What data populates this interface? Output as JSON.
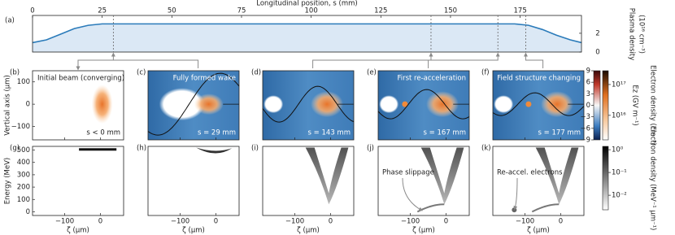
{
  "chart_data": [
    {
      "type": "line",
      "label": "(a)",
      "xlabel": "Longitudinal position, s (mm)",
      "ylabel": "Plasma density",
      "ylabel_unit": "(10¹⁶ cm⁻³)",
      "x": [
        0,
        5,
        10,
        15,
        20,
        25,
        28,
        173,
        178,
        183,
        188,
        193,
        197
      ],
      "values": [
        1.0,
        1.3,
        1.9,
        2.5,
        2.85,
        3.0,
        3.0,
        3.0,
        2.85,
        2.4,
        1.8,
        1.3,
        1.0
      ],
      "xlim": [
        0,
        197
      ],
      "ylim": [
        0,
        3.9
      ],
      "xticks": [
        0,
        25,
        50,
        75,
        100,
        125,
        150,
        175
      ],
      "yticks": [
        0,
        2
      ],
      "color": "#2b7bba",
      "fill": "#dbe8f5",
      "markers": [
        29,
        143,
        167,
        177
      ]
    },
    {
      "type": "heatmap",
      "ylabel": "Vertical axis (μm)",
      "xlim": [
        -190,
        65
      ],
      "ylim": [
        -160,
        150
      ],
      "yticks": [
        100,
        0,
        {
          "value": -100,
          "label": "−100"
        }
      ],
      "panels": [
        {
          "label": "(b)",
          "title": "Initial beam (converging)",
          "annotation": "s < 0 mm"
        },
        {
          "label": "(c)",
          "title": "Fully formed wake",
          "annotation": "s = 29 mm"
        },
        {
          "label": "(d)",
          "annotation": "s = 143 mm"
        },
        {
          "label": "(e)",
          "title": "First re-acceleration",
          "annotation": "s = 167 mm"
        },
        {
          "label": "(f)",
          "title": "Field structure changing",
          "annotation": "s = 177 mm"
        }
      ],
      "colorbars": [
        {
          "label": "Ez (GV m⁻¹)",
          "lim": [
            -9,
            9
          ],
          "ticks": [
            9,
            6,
            3,
            0,
            {
              "value": -3,
              "label": "−3"
            },
            {
              "value": -6,
              "label": "−6"
            },
            {
              "value": -9,
              "label": "−9"
            }
          ]
        },
        {
          "label": "Electron density (cm⁻³)",
          "log": true,
          "lim": [
            1600000000000000.0,
            2.8e+17
          ],
          "ticks": [
            {
              "value": 1e+17,
              "label": "10¹⁷"
            },
            {
              "value": 1e+16,
              "label": "10¹⁶"
            }
          ]
        }
      ]
    },
    {
      "type": "heatmap",
      "ylabel": "Energy (MeV)",
      "xlabel": "ζ (μm)",
      "xlim": [
        -190,
        65
      ],
      "ylim": [
        -30,
        530
      ],
      "yticks": [
        0,
        100,
        200,
        300,
        400,
        500
      ],
      "xticks": [
        {
          "value": -100,
          "label": "−100"
        },
        0
      ],
      "panels": [
        {
          "label": "(g)"
        },
        {
          "label": "(h)"
        },
        {
          "label": "(i)"
        },
        {
          "label": "(j)",
          "annotation": "Phase slippage"
        },
        {
          "label": "(k)",
          "annotation": "Re-accel. electrons"
        }
      ],
      "colorbar": {
        "label": "Electron density (MeV⁻¹ μm⁻¹)",
        "log": true,
        "lim": [
          0.0023,
          1.4
        ],
        "ticks": [
          {
            "value": 1,
            "label": "10⁰"
          },
          {
            "value": 0.1,
            "label": "10⁻¹"
          },
          {
            "value": 0.01,
            "label": "10⁻²"
          }
        ]
      }
    }
  ]
}
